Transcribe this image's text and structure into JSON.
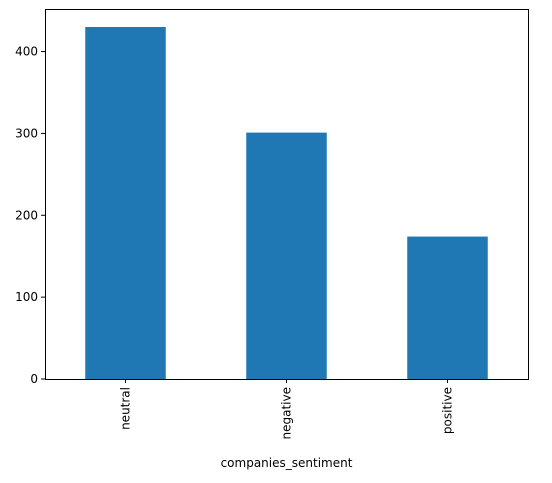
{
  "chart_data": {
    "type": "bar",
    "title": "",
    "xlabel": "companies_sentiment",
    "ylabel": "",
    "categories": [
      "neutral",
      "negative",
      "positive"
    ],
    "values": [
      430,
      301,
      174
    ],
    "ylim": [
      0,
      452
    ],
    "yticks": [
      0,
      100,
      200,
      300,
      400
    ],
    "grid": false,
    "legend": "none",
    "bar_color": "#1f77b4"
  }
}
